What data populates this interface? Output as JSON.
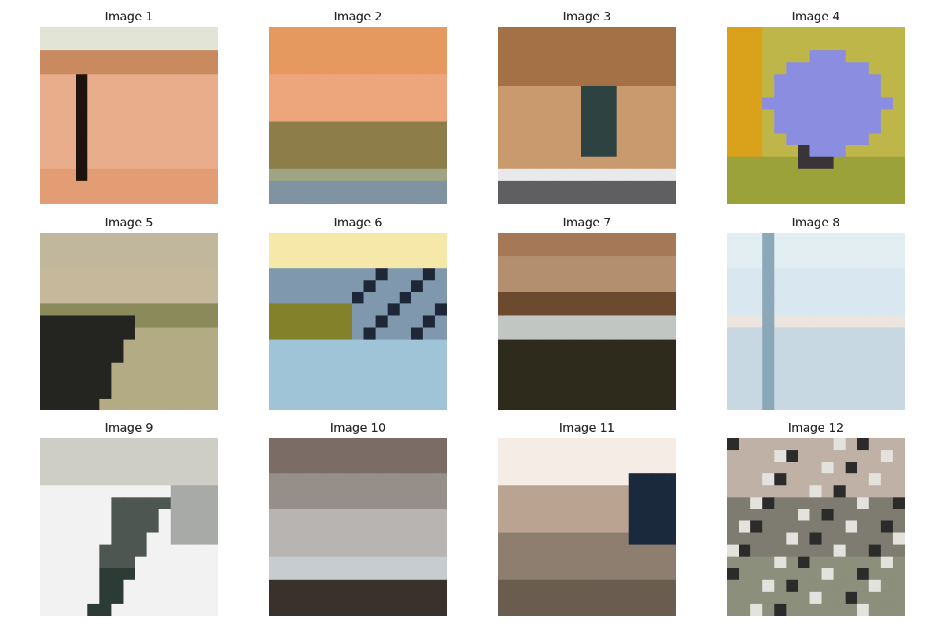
{
  "images": [
    {
      "title": "Image 1",
      "description": "warm peach tones with pale sky band at top and dark vertical post on the left",
      "colors": [
        "#e2e4d6",
        "#c98a60",
        "#e9ad8c",
        "#e39d74",
        "#1e120c"
      ]
    },
    {
      "title": "Image 2",
      "description": "orange sunset sky over olive ground band and blue-grey water at bottom",
      "colors": [
        "#e5995f",
        "#eda57b",
        "#8d7d49",
        "#9fa582",
        "#7f93a0"
      ]
    },
    {
      "title": "Image 3",
      "description": "tan and brown blocks with a dark teal figure in the center and white band at bottom",
      "colors": [
        "#a47046",
        "#c89a6d",
        "#2e4242",
        "#e8e9ea",
        "#5f5f61"
      ]
    },
    {
      "title": "Image 4",
      "description": "yellow background with a lavender blue shape in the middle",
      "colors": [
        "#d9a21a",
        "#8b8ee0",
        "#bfb64a",
        "#3b3436",
        "#9ba23a"
      ]
    },
    {
      "title": "Image 5",
      "description": "beige sky over khaki slope with dark shadow in lower left",
      "colors": [
        "#c1b79c",
        "#b3ab84",
        "#8a8a5a",
        "#242421",
        "#c6b89a"
      ]
    },
    {
      "title": "Image 6",
      "description": "pale yellow sky, blue-grey rock, olive band and blue water",
      "colors": [
        "#f5e8a8",
        "#7f98ad",
        "#83822a",
        "#9fc4d8",
        "#1d2738"
      ]
    },
    {
      "title": "Image 7",
      "description": "muted brown bands with darker horizon and grey-white highlights",
      "colors": [
        "#a57958",
        "#b48f6f",
        "#6c4a30",
        "#c2c6c2",
        "#2e2a1c"
      ]
    },
    {
      "title": "Image 8",
      "description": "very light blue-white sky with a steel blue vertical pole on the left",
      "colors": [
        "#e3eef3",
        "#d9e7f0",
        "#8ba8b9",
        "#ebe4df",
        "#c8d8e2"
      ]
    },
    {
      "title": "Image 9",
      "description": "pale grey sky over white snow with a dark green-grey diagonal shape",
      "colors": [
        "#cfcec6",
        "#f2f2f2",
        "#4d5651",
        "#2d3b36",
        "#a8aaa7"
      ]
    },
    {
      "title": "Image 10",
      "description": "grey-brown tones with light grey band and dark strip at bottom",
      "colors": [
        "#7b6c65",
        "#b7b4b2",
        "#c7ccd0",
        "#3a302c",
        "#958e89"
      ]
    },
    {
      "title": "Image 11",
      "description": "cream sky, beige and brown ground with dark navy shape on the right",
      "colors": [
        "#f5ece6",
        "#bba392",
        "#6a5d50",
        "#1a2a3c",
        "#8e7e70"
      ]
    },
    {
      "title": "Image 12",
      "description": "speckled grey-beige and olive texture with dark spots",
      "colors": [
        "#bfb1a6",
        "#7e7c70",
        "#8b8f7b",
        "#e3e2dc",
        "#2b2c2a"
      ]
    }
  ]
}
